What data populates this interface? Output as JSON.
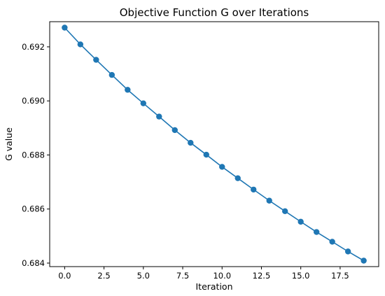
{
  "chart_data": {
    "type": "line",
    "title": "Objective Function G over Iterations",
    "xlabel": "Iteration",
    "ylabel": "G value",
    "xlim": [
      -0.95,
      19.95
    ],
    "ylim": [
      0.68387,
      0.69293
    ],
    "xticks": [
      0.0,
      2.5,
      5.0,
      7.5,
      10.0,
      12.5,
      15.0,
      17.5
    ],
    "xtick_labels": [
      "0.0",
      "2.5",
      "5.0",
      "7.5",
      "10.0",
      "12.5",
      "15.0",
      "17.5"
    ],
    "yticks": [
      0.684,
      0.686,
      0.688,
      0.69,
      0.692
    ],
    "ytick_labels": [
      "0.684",
      "0.686",
      "0.688",
      "0.690",
      "0.692"
    ],
    "grid": false,
    "legend": false,
    "series": [
      {
        "color": "#1f77b4",
        "marker": "circle",
        "x": [
          0,
          1,
          2,
          3,
          4,
          5,
          6,
          7,
          8,
          9,
          10,
          11,
          12,
          13,
          14,
          15,
          16,
          17,
          18,
          19
        ],
        "y": [
          0.69271,
          0.69209,
          0.69152,
          0.69096,
          0.69041,
          0.68991,
          0.68942,
          0.68892,
          0.68845,
          0.68801,
          0.68756,
          0.68714,
          0.68672,
          0.68631,
          0.68592,
          0.68553,
          0.68515,
          0.68479,
          0.68443,
          0.68409
        ]
      }
    ]
  }
}
